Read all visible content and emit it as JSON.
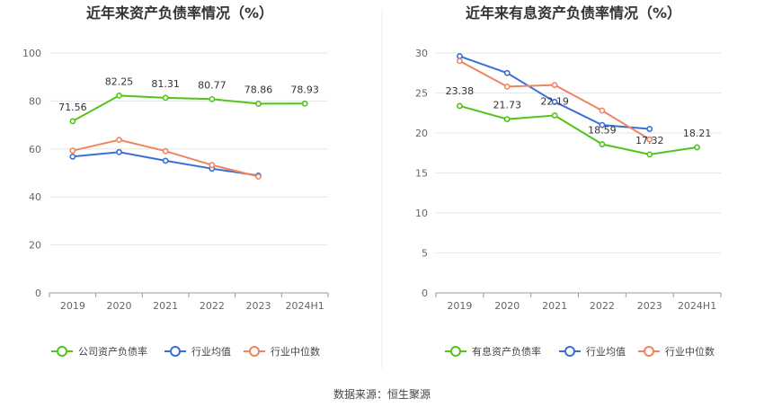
{
  "source_text": "数据来源：恒生聚源",
  "colors": {
    "main": "#52c41a",
    "avg": "#3a6fd8",
    "median": "#f0845f",
    "grid": "#e6e6e6",
    "axis": "#999999"
  },
  "chart_data": [
    {
      "type": "line",
      "title": "近年来资产负债率情况（%）",
      "categories": [
        "2019",
        "2020",
        "2021",
        "2022",
        "2023",
        "2024H1"
      ],
      "ylim": [
        0,
        100
      ],
      "yticks": [
        0,
        20,
        40,
        60,
        80,
        100
      ],
      "series": [
        {
          "name": "公司资产负债率",
          "color": "#52c41a",
          "values": [
            71.56,
            82.25,
            81.31,
            80.77,
            78.86,
            78.93
          ],
          "labels": [
            "71.56",
            "82.25",
            "81.31",
            "80.77",
            "78.86",
            "78.93"
          ]
        },
        {
          "name": "行业均值",
          "color": "#3a6fd8",
          "values": [
            56.8,
            58.7,
            55.1,
            51.8,
            48.9,
            null
          ]
        },
        {
          "name": "行业中位数",
          "color": "#f0845f",
          "values": [
            59.3,
            63.8,
            59.1,
            53.3,
            48.5,
            null
          ]
        }
      ]
    },
    {
      "type": "line",
      "title": "近年来有息资产负债率情况（%）",
      "categories": [
        "2019",
        "2020",
        "2021",
        "2022",
        "2023",
        "2024H1"
      ],
      "ylim": [
        0,
        30
      ],
      "yticks": [
        0,
        5,
        10,
        15,
        20,
        25,
        30
      ],
      "series": [
        {
          "name": "有息资产负债率",
          "color": "#52c41a",
          "values": [
            23.38,
            21.73,
            22.19,
            18.59,
            17.32,
            18.21
          ],
          "labels": [
            "23.38",
            "21.73",
            "22.19",
            "18.59",
            "17.32",
            "18.21"
          ]
        },
        {
          "name": "行业均值",
          "color": "#3a6fd8",
          "values": [
            29.6,
            27.5,
            23.9,
            21.0,
            20.5,
            null
          ]
        },
        {
          "name": "行业中位数",
          "color": "#f0845f",
          "values": [
            29.0,
            25.8,
            26.0,
            22.8,
            19.2,
            null
          ]
        }
      ]
    }
  ]
}
